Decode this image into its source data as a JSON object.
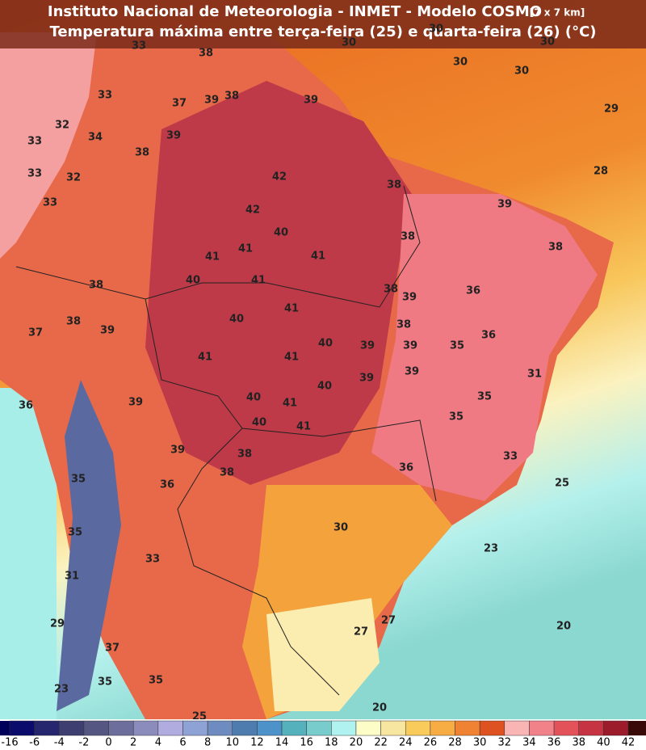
{
  "header": {
    "title": "Instituto Nacional de Meteorologia - INMET - Modelo COSMO",
    "resolution": "[7 x 7 km]",
    "subtitle": "Temperatura máxima entre terça-feira (25) e quarta-feira (26) (°C)"
  },
  "map_labels": [
    33,
    38,
    30,
    30,
    30,
    30,
    30,
    33,
    37,
    39,
    38,
    39,
    29,
    32,
    34,
    33,
    39,
    38,
    33,
    32,
    42,
    28,
    33,
    38,
    39,
    42,
    40,
    38,
    38,
    41,
    41,
    41,
    40,
    41,
    38,
    38,
    36,
    39,
    41,
    40,
    38,
    39,
    37,
    38,
    36,
    40,
    39,
    39,
    35,
    41,
    41,
    31,
    39,
    40,
    39,
    36,
    39,
    40,
    41,
    35,
    35,
    40,
    41,
    39,
    38,
    33,
    36,
    38,
    35,
    36,
    25,
    30,
    35,
    23,
    33,
    31,
    29,
    27,
    20,
    27,
    37,
    35,
    35,
    23,
    20,
    25
  ],
  "colorbar": {
    "ticks": [
      -16,
      -6,
      -4,
      -2,
      0,
      2,
      4,
      6,
      8,
      10,
      12,
      14,
      16,
      18,
      20,
      22,
      24,
      26,
      28,
      30,
      32,
      34,
      36,
      38,
      40,
      42
    ],
    "colors": [
      "#0b0b6b",
      "#26266e",
      "#3e3e70",
      "#565683",
      "#6e6e9c",
      "#8c8cbc",
      "#b0acdf",
      "#8fa2d6",
      "#6f8cc0",
      "#4f7cae",
      "#4d92c9",
      "#55b2bd",
      "#79cccc",
      "#b0f2ef",
      "#fdfdc8",
      "#f7e6a0",
      "#f8cb5a",
      "#f7ad44",
      "#ef8233",
      "#dd5220",
      "#f9b4b4",
      "#f2828a",
      "#e25258",
      "#c63443",
      "#9c1c2c"
    ]
  }
}
